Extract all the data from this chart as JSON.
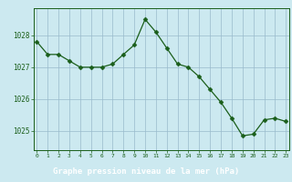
{
  "x": [
    0,
    1,
    2,
    3,
    4,
    5,
    6,
    7,
    8,
    9,
    10,
    11,
    12,
    13,
    14,
    15,
    16,
    17,
    18,
    19,
    20,
    21,
    22,
    23
  ],
  "y": [
    1027.8,
    1027.4,
    1027.4,
    1027.2,
    1027.0,
    1027.0,
    1027.0,
    1027.1,
    1027.4,
    1027.7,
    1028.5,
    1028.1,
    1027.6,
    1027.1,
    1027.0,
    1026.7,
    1026.3,
    1025.9,
    1025.4,
    1024.85,
    1024.9,
    1025.35,
    1025.4,
    1025.3
  ],
  "line_color": "#1a5e1a",
  "marker": "D",
  "marker_size": 2.5,
  "bg_color": "#cce9f0",
  "plot_bg_color": "#cce9f0",
  "grid_color": "#99bbcc",
  "xlabel": "Graphe pression niveau de la mer (hPa)",
  "xlabel_color": "#1a5e1a",
  "tick_color": "#1a5e1a",
  "axis_color": "#1a5e1a",
  "footer_bg": "#2d6e2d",
  "footer_text_color": "#ffffff",
  "ylim": [
    1024.4,
    1028.85
  ],
  "yticks": [
    1025,
    1026,
    1027,
    1028
  ],
  "xticks": [
    0,
    1,
    2,
    3,
    4,
    5,
    6,
    7,
    8,
    9,
    10,
    11,
    12,
    13,
    14,
    15,
    16,
    17,
    18,
    19,
    20,
    21,
    22,
    23
  ],
  "xlim": [
    -0.3,
    23.3
  ]
}
